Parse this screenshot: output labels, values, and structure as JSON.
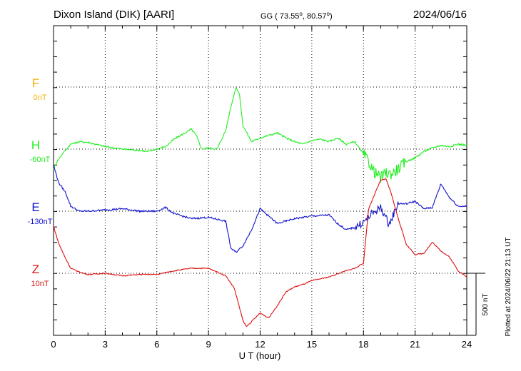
{
  "header": {
    "station": "Dixon Island (DIK)  [AARI]",
    "coords": "GG ( 73.55",
    "coords_lon": ",  80.57",
    "coords_end": ")",
    "date": "2024/06/16"
  },
  "footer": {
    "plotted": "Plotted at 2024/06/22 21:13 UT",
    "scale_label": "500 nT"
  },
  "colors": {
    "F": "#f0b000",
    "H": "#22ee22",
    "E": "#1111cc",
    "Z": "#dd1111"
  },
  "chart_data": {
    "type": "line",
    "xlabel": "U T (hour)",
    "xlim": [
      0,
      24
    ],
    "xticks": [
      "0",
      "3",
      "6",
      "9",
      "12",
      "15",
      "18",
      "21",
      "24"
    ],
    "scale_nT_per_bar": 500,
    "components": [
      {
        "name": "F",
        "baseline": "0nT",
        "color": "#f0b000",
        "x": [],
        "values": []
      },
      {
        "name": "H",
        "baseline": "-60nT",
        "color": "#22ee22",
        "x": [
          0,
          0.2,
          0.5,
          1,
          1.5,
          2,
          3,
          4,
          5,
          5.5,
          6,
          6.5,
          7,
          7.5,
          8,
          8.3,
          8.6,
          9,
          9.5,
          10,
          10.3,
          10.6,
          10.8,
          11,
          11.5,
          12,
          12.5,
          13,
          13.5,
          14,
          14.5,
          15,
          15.5,
          16,
          16.5,
          17,
          17.5,
          18,
          18.3,
          18.6,
          19,
          19.3,
          19.6,
          20,
          20.5,
          21,
          21.5,
          22,
          22.5,
          23,
          23.5,
          24
        ],
        "values": [
          -160,
          -100,
          -40,
          40,
          60,
          55,
          20,
          0,
          -10,
          -20,
          0,
          20,
          80,
          120,
          160,
          110,
          0,
          10,
          0,
          150,
          340,
          500,
          440,
          190,
          60,
          90,
          110,
          130,
          90,
          60,
          40,
          70,
          80,
          60,
          90,
          40,
          60,
          -40,
          -100,
          -180,
          -230,
          -190,
          -200,
          -160,
          -100,
          -70,
          -20,
          10,
          30,
          20,
          40,
          30
        ]
      },
      {
        "name": "E",
        "baseline": "-130nT",
        "color": "#1111cc",
        "x": [
          0,
          0.3,
          0.7,
          1,
          1.5,
          2,
          3,
          4,
          5,
          6,
          6.5,
          7,
          7.5,
          8,
          9,
          10,
          10.3,
          10.6,
          11,
          11.5,
          12,
          12.5,
          13,
          14,
          15,
          16,
          16.5,
          17,
          17.5,
          18,
          18.5,
          19,
          19.5,
          20,
          20.5,
          21,
          21.5,
          22,
          22.5,
          23,
          23.5,
          24
        ],
        "values": [
          370,
          230,
          150,
          40,
          0,
          0,
          10,
          20,
          0,
          0,
          30,
          -20,
          -40,
          -60,
          -50,
          -80,
          -300,
          -330,
          -280,
          -150,
          20,
          -40,
          -100,
          -60,
          -40,
          -30,
          -100,
          -150,
          -130,
          -90,
          -20,
          30,
          -110,
          60,
          60,
          80,
          20,
          30,
          220,
          110,
          40,
          40
        ]
      },
      {
        "name": "Z",
        "baseline": "10nT",
        "color": "#dd1111",
        "x": [
          0,
          0.3,
          0.7,
          1,
          1.5,
          2,
          3,
          4,
          5,
          6,
          7,
          8,
          9,
          10,
          10.5,
          11,
          11.2,
          11.5,
          12,
          12.5,
          13,
          13.5,
          14,
          14.5,
          15,
          16,
          17,
          17.5,
          18,
          18.3,
          18.6,
          19,
          19.3,
          19.6,
          20,
          20.5,
          21,
          21.5,
          22,
          22.5,
          23,
          23.5,
          24
        ],
        "values": [
          380,
          240,
          120,
          40,
          10,
          -10,
          0,
          -20,
          -10,
          -10,
          20,
          40,
          40,
          -20,
          -120,
          -380,
          -430,
          -390,
          -320,
          -360,
          -260,
          -150,
          -110,
          -90,
          -60,
          -30,
          20,
          40,
          80,
          520,
          620,
          750,
          760,
          650,
          450,
          230,
          150,
          160,
          250,
          180,
          130,
          20,
          -30
        ]
      }
    ]
  }
}
